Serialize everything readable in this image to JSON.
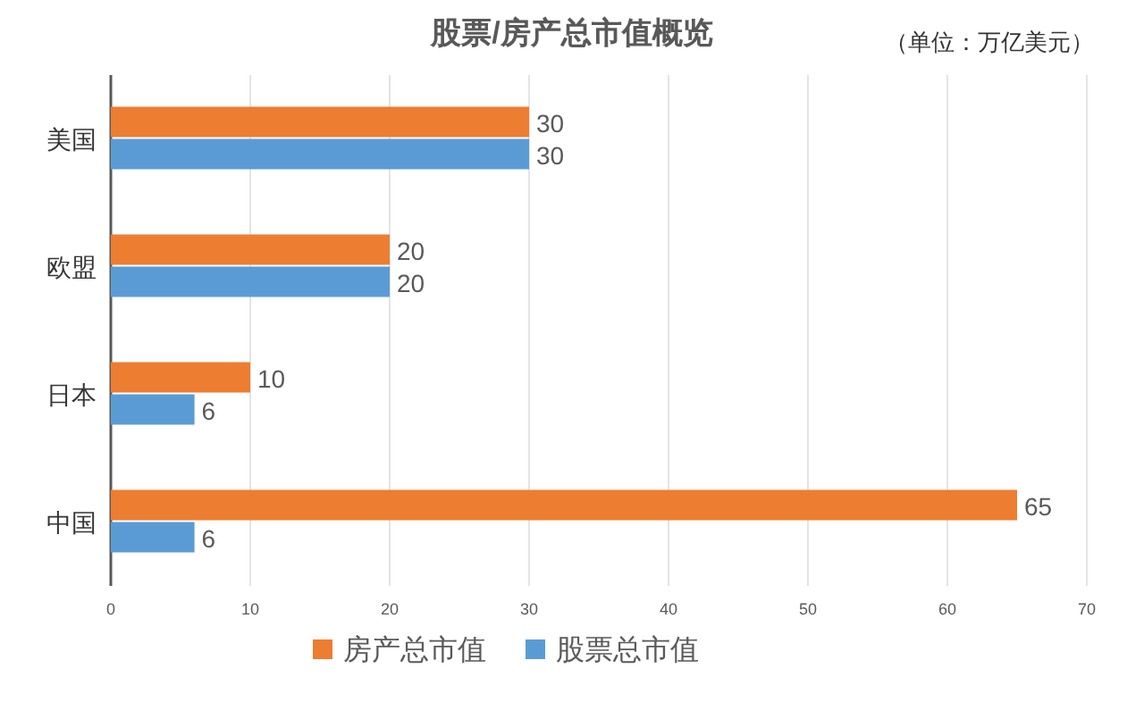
{
  "chart_data": {
    "type": "bar",
    "orientation": "horizontal",
    "title": "股票/房产总市值概览",
    "annotations": [
      "（单位：万亿美元）"
    ],
    "categories": [
      "美国",
      "欧盟",
      "日本",
      "中国"
    ],
    "series": [
      {
        "name": "房产总市值",
        "color": "#ed7d31",
        "values": [
          30,
          20,
          10,
          65
        ]
      },
      {
        "name": "股票总市值",
        "color": "#5b9bd5",
        "values": [
          30,
          20,
          6,
          6
        ]
      }
    ],
    "xlim": [
      0,
      70
    ],
    "xticks": [
      0,
      10,
      20,
      30,
      40,
      50,
      60,
      70
    ],
    "grid": "x",
    "legend": "bottom",
    "data_labels": true
  }
}
